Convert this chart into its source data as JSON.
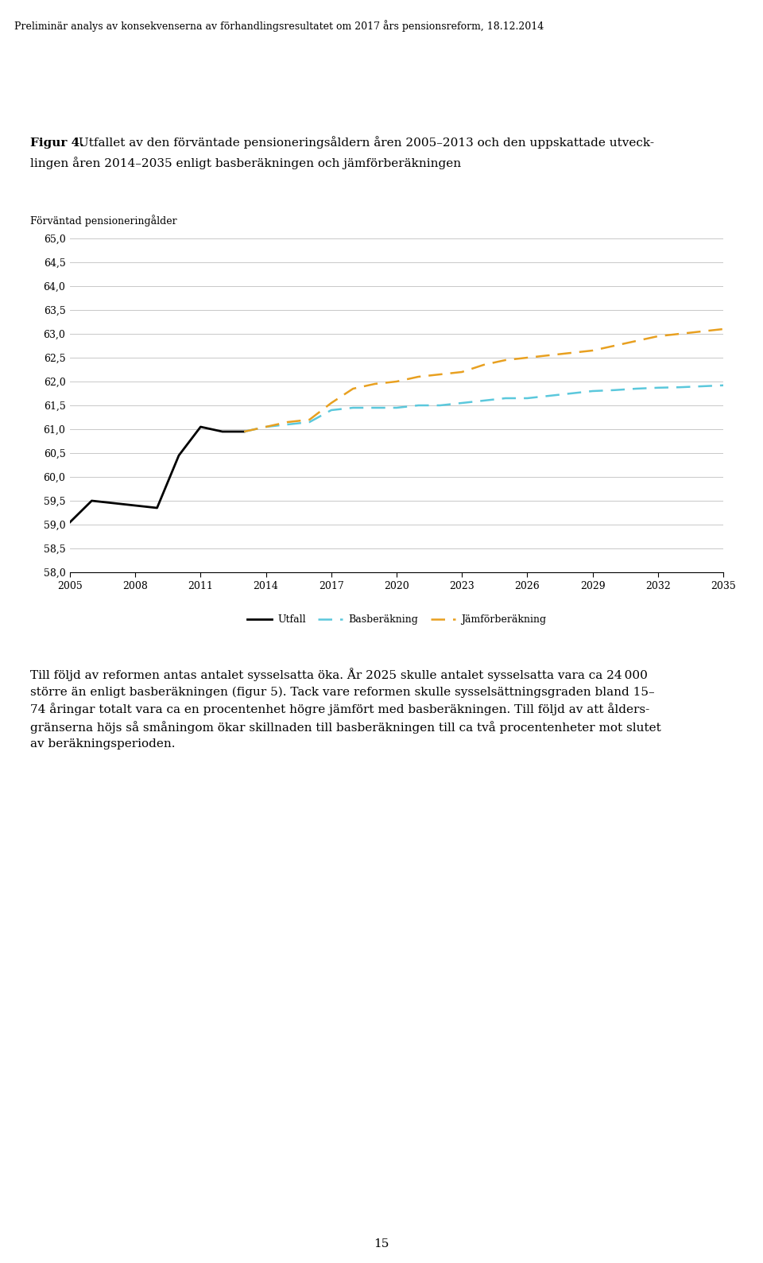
{
  "header": "Preliminär analys av konsekvenserna av förhandlingsresultatet om 2017 års pensionsreform, 18.12.2014",
  "figure_label": "Figur 4.",
  "figure_title_part1": " Utfallet av den förväntade pensioneringsåldern åren 2005–2013 och den uppskattade utveck-",
  "figure_title_part2": "lingen åren 2014–2035 enligt basberäkningen och jämförberäkningen",
  "ylabel": "Förväntad pensioneringålder",
  "ylim": [
    58.0,
    65.0
  ],
  "yticks": [
    58.0,
    58.5,
    59.0,
    59.5,
    60.0,
    60.5,
    61.0,
    61.5,
    62.0,
    62.5,
    63.0,
    63.5,
    64.0,
    64.5,
    65.0
  ],
  "xticks": [
    2005,
    2008,
    2011,
    2014,
    2017,
    2020,
    2023,
    2026,
    2029,
    2032,
    2035
  ],
  "utfall_x": [
    2005,
    2006,
    2007,
    2008,
    2009,
    2010,
    2011,
    2012,
    2013
  ],
  "utfall_y": [
    59.05,
    59.5,
    59.45,
    59.4,
    59.35,
    60.45,
    61.05,
    60.95,
    60.95
  ],
  "bas_x": [
    2013,
    2014,
    2015,
    2016,
    2017,
    2018,
    2019,
    2020,
    2021,
    2022,
    2023,
    2024,
    2025,
    2026,
    2027,
    2028,
    2029,
    2030,
    2031,
    2032,
    2033,
    2034,
    2035
  ],
  "bas_y": [
    60.95,
    61.05,
    61.1,
    61.15,
    61.4,
    61.45,
    61.45,
    61.45,
    61.5,
    61.5,
    61.55,
    61.6,
    61.65,
    61.65,
    61.7,
    61.75,
    61.8,
    61.82,
    61.85,
    61.87,
    61.88,
    61.9,
    61.92
  ],
  "jamfor_x": [
    2013,
    2014,
    2015,
    2016,
    2017,
    2018,
    2019,
    2020,
    2021,
    2022,
    2023,
    2024,
    2025,
    2026,
    2027,
    2028,
    2029,
    2030,
    2031,
    2032,
    2033,
    2034,
    2035
  ],
  "jamfor_y": [
    60.95,
    61.05,
    61.15,
    61.2,
    61.55,
    61.85,
    61.95,
    62.0,
    62.1,
    62.15,
    62.2,
    62.35,
    62.45,
    62.5,
    62.55,
    62.6,
    62.65,
    62.75,
    62.85,
    62.95,
    63.0,
    63.05,
    63.1
  ],
  "utfall_color": "#000000",
  "bas_color": "#5BC8DC",
  "jamfor_color": "#E8A020",
  "legend_utfall": "Utfall",
  "legend_bas": "Basberäkning",
  "legend_jamfor": "Jämförberäkning",
  "body_text_line1": "Till följd av reformen antas antalet sysselsatta öka. År 2025 skulle antalet sysselsatta vara ca 24 000",
  "body_text_line2": "större än enligt basberäkningen (figur 5). Tack vare reformen skulle sysselsättningsgraden bland 15–",
  "body_text_line3": "74 åringar totalt vara ca en procentenhet högre jämfört med basberäkningen. Till följd av att ålders-",
  "body_text_line4": "gränserna höjs så småningom ökar skillnaden till basberäkningen till ca två procentenheter mot slutet",
  "body_text_line5": "av beräkningsperioden.",
  "page_number": "15",
  "bg_color": "#ffffff",
  "grid_color": "#c8c8c8",
  "spine_color": "#000000",
  "font_size_header": 9,
  "font_size_caption": 11,
  "font_size_axis": 9,
  "font_size_body": 11,
  "font_size_page": 11
}
